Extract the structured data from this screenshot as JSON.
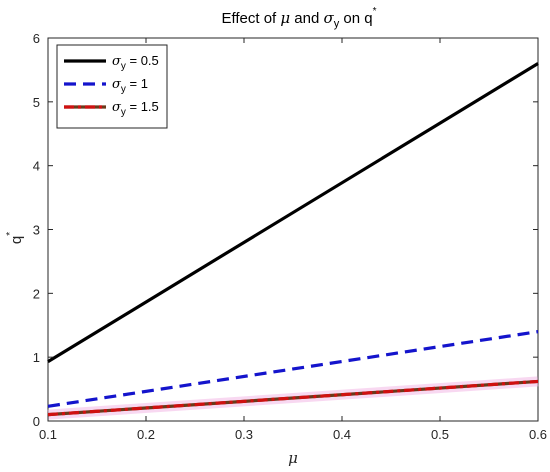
{
  "chart_data": {
    "type": "line",
    "title": {
      "prefix": "Effect of ",
      "mu": "μ",
      "middle": " and ",
      "sigma": "σ",
      "sigma_sub": "y",
      "on": " on q",
      "star": "*"
    },
    "xlabel": "μ",
    "ylabel": {
      "base": "q",
      "sup": "*"
    },
    "xlim": [
      0.1,
      0.6
    ],
    "ylim": [
      0,
      6
    ],
    "x_ticks": [
      "0.1",
      "0.2",
      "0.3",
      "0.4",
      "0.5",
      "0.6"
    ],
    "y_ticks": [
      "0",
      "1",
      "2",
      "3",
      "4",
      "5",
      "6"
    ],
    "grid": false,
    "legend_position": "top-left",
    "series": [
      {
        "legend_label": {
          "sigma": "σ",
          "sub": "y",
          "value": " = 0.5"
        },
        "style": "solid",
        "color": "#000000",
        "x": [
          0.1,
          0.6
        ],
        "y": [
          0.93,
          5.6
        ]
      },
      {
        "legend_label": {
          "sigma": "σ",
          "sub": "y",
          "value": " = 1"
        },
        "style": "dashed",
        "color": "#1414cc",
        "x": [
          0.1,
          0.6
        ],
        "y": [
          0.23,
          1.4
        ]
      },
      {
        "legend_label": {
          "sigma": "σ",
          "sub": "y",
          "value": " = 1.5"
        },
        "style": "dashdot",
        "color": "#d01010",
        "x": [
          0.1,
          0.6
        ],
        "y": [
          0.1,
          0.62
        ]
      }
    ],
    "accent_colors": {
      "axis": "#262626",
      "dashdot_overlap": "#6b3a1a",
      "highlight": "#f2b8e6"
    }
  }
}
